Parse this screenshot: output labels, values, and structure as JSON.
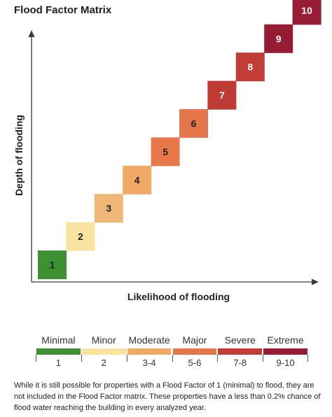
{
  "title": "Flood Factor Matrix",
  "chart_data": {
    "type": "matrix",
    "xlabel": "Likelihood of flooding",
    "ylabel": "Depth of flooding",
    "cells": [
      {
        "value": 1,
        "label": "1",
        "color": "#3d9132"
      },
      {
        "value": 2,
        "label": "2",
        "color": "#f8e4a0"
      },
      {
        "value": 3,
        "label": "3",
        "color": "#f0b877"
      },
      {
        "value": 4,
        "label": "4",
        "color": "#f0a865"
      },
      {
        "value": 5,
        "label": "5",
        "color": "#e8784a"
      },
      {
        "value": 6,
        "label": "6",
        "color": "#e5754a"
      },
      {
        "value": 7,
        "label": "7",
        "color": "#bf3a33"
      },
      {
        "value": 8,
        "label": "8",
        "color": "#c23d36"
      },
      {
        "value": 9,
        "label": "9",
        "color": "#961c33"
      },
      {
        "value": 10,
        "label": "10",
        "color": "#981d34"
      }
    ]
  },
  "legend": [
    {
      "category": "Minimal",
      "range": "1",
      "color": "#3d9132"
    },
    {
      "category": "Minor",
      "range": "2",
      "color": "#f8e4a0"
    },
    {
      "category": "Moderate",
      "range": "3-4",
      "color": "#f0a865"
    },
    {
      "category": "Major",
      "range": "5-6",
      "color": "#e5754a"
    },
    {
      "category": "Severe",
      "range": "7-8",
      "color": "#c23d36"
    },
    {
      "category": "Extreme",
      "range": "9-10",
      "color": "#981d34"
    }
  ],
  "footnote": "While it is still possible for properties with a Flood Factor of 1 (minimal) to flood, they are not included in the Flood Factor matrix. These properties have a less than 0.2% chance of flood water reaching the building in every analyzed year."
}
